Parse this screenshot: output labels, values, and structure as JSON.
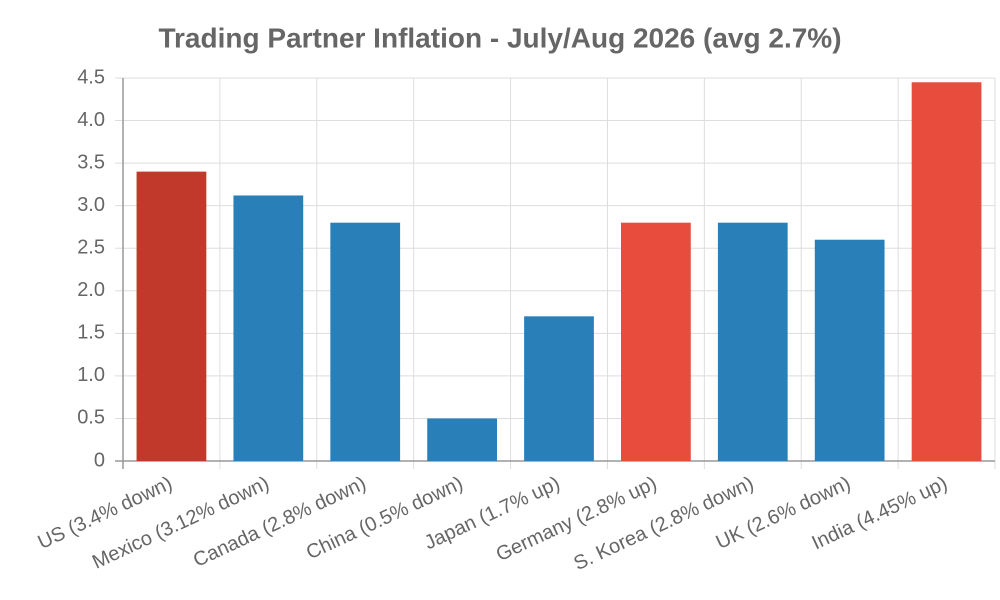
{
  "chart_data": {
    "type": "bar",
    "title": "Trading Partner Inflation - July/Aug 2026 (avg 2.7%)",
    "categories": [
      "US (3.4% down)",
      "Mexico (3.12% down)",
      "Canada (2.8% down)",
      "China (0.5% down)",
      "Japan (1.7% up)",
      "Germany (2.8% up)",
      "S. Korea (2.8% down)",
      "UK (2.6% down)",
      "India (4.45% up)"
    ],
    "values": [
      3.4,
      3.12,
      2.8,
      0.5,
      1.7,
      2.8,
      2.8,
      2.6,
      4.45
    ],
    "colors": [
      "#c0392b",
      "#2980b9",
      "#2980b9",
      "#2980b9",
      "#2980b9",
      "#e74c3c",
      "#2980b9",
      "#2980b9",
      "#e74c3c"
    ],
    "ylim": [
      0,
      4.5
    ],
    "yticks": [
      0,
      0.5,
      {
        "value": 1,
        "label": "1.0"
      },
      1.5,
      {
        "value": 2,
        "label": "2.0"
      },
      2.5,
      {
        "value": 3,
        "label": "3.0"
      },
      3.5,
      {
        "value": 4,
        "label": "4.0"
      },
      4.5
    ],
    "grid": true
  }
}
